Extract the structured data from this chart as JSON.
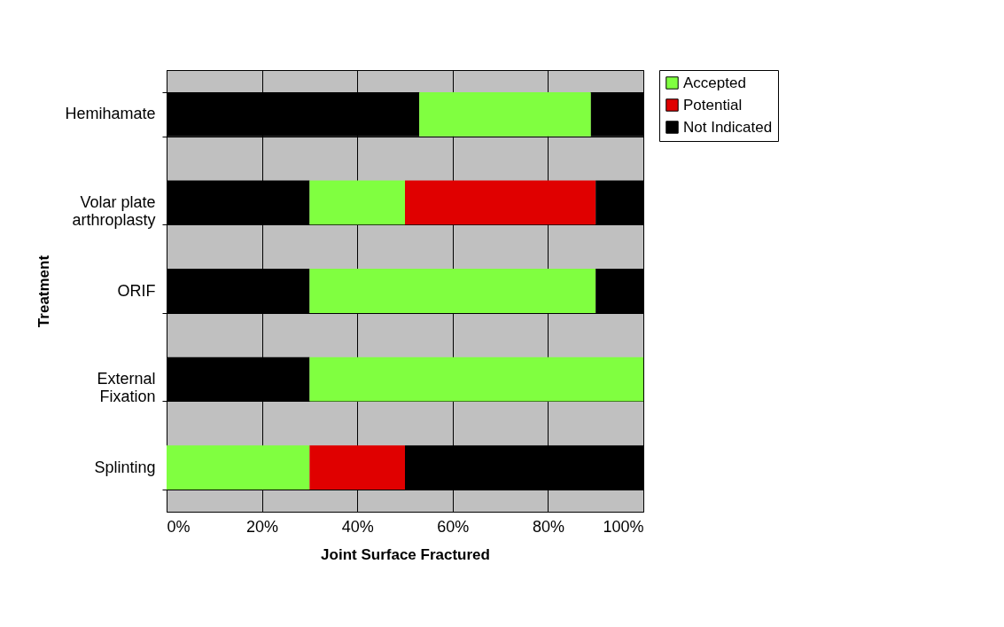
{
  "chart_data": {
    "type": "bar",
    "orientation": "horizontal",
    "stacked": true,
    "xlabel": "Joint Surface Fractured",
    "ylabel": "Treatment",
    "categories": [
      "Hemihamate",
      "Volar plate\narthroplasty",
      "ORIF",
      "External\nFixation",
      "Splinting"
    ],
    "series": [
      {
        "color": "#000000",
        "values": [
          53,
          30,
          30,
          30,
          0
        ]
      },
      {
        "name": "Accepted",
        "color": "#80ff40",
        "values": [
          36,
          20,
          60,
          70,
          30
        ]
      },
      {
        "name": "Potential",
        "color": "#e00000",
        "values": [
          0,
          40,
          0,
          0,
          20
        ]
      },
      {
        "name": "Not Indicated",
        "color": "#000000",
        "values": [
          11,
          10,
          10,
          0,
          50
        ]
      }
    ],
    "xlim": [
      0,
      100
    ],
    "xticks": [
      {
        "value": 0,
        "label": "0%"
      },
      {
        "value": 20,
        "label": "20%"
      },
      {
        "value": 40,
        "label": "40%"
      },
      {
        "value": 60,
        "label": "60%"
      },
      {
        "value": 80,
        "label": "80%"
      },
      {
        "value": 100,
        "label": "100%"
      }
    ],
    "grid": true,
    "legend": "right"
  }
}
